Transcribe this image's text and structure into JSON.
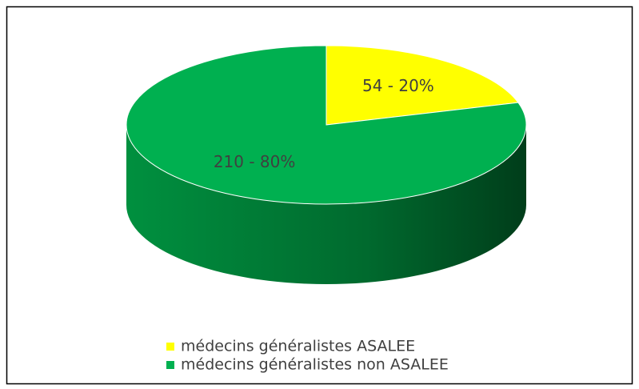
{
  "chart_data": {
    "type": "pie",
    "three_d": true,
    "categories": [
      "médecins généralistes ASALEE",
      "médecins généralistes non ASALEE"
    ],
    "values": [
      54,
      210
    ],
    "value_labels": [
      "54 - 20%",
      "210 - 80%"
    ],
    "colors": [
      "#ffff00",
      "#00b050"
    ],
    "legend": "bottom"
  }
}
